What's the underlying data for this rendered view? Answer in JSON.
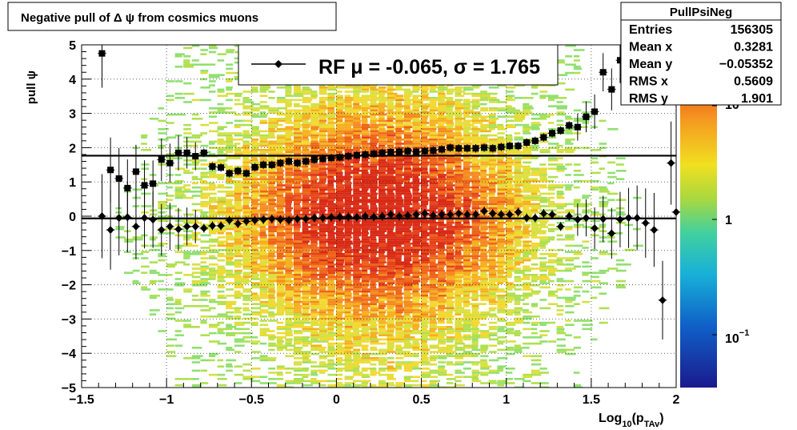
{
  "title": "Negative pull of Δ ψ from cosmics muons",
  "stats": {
    "name": "PullPsiNeg",
    "rows": [
      {
        "label": "Entries",
        "value": "156305"
      },
      {
        "label": "Mean x",
        "value": "0.3281"
      },
      {
        "label": "Mean y",
        "value": "−0.05352"
      },
      {
        "label": "RMS x",
        "value": "0.5609"
      },
      {
        "label": "RMS y",
        "value": "1.901"
      }
    ]
  },
  "legend": {
    "text": "RF μ = -0.065, σ =   1.765"
  },
  "chart_data": {
    "type": "heatmap",
    "title": "Negative pull of Δ ψ from cosmics muons",
    "xlabel_base": "Log",
    "xlabel_sub1": "10",
    "xlabel_mid": "(p",
    "xlabel_sub2": "TAv",
    "xlabel_end": ")",
    "ylabel": "pull ψ",
    "xlim": [
      -1.5,
      2
    ],
    "ylim": [
      -5,
      5
    ],
    "x_ticks": [
      "−1.5",
      "−1",
      "−0.5",
      "0",
      "0.5",
      "1",
      "1.5",
      "2"
    ],
    "y_ticks": [
      "5",
      "4",
      "3",
      "2",
      "1",
      "0",
      "−1",
      "−2",
      "−3",
      "−4",
      "−5"
    ],
    "colorbar": {
      "scale": "log",
      "labels": [
        {
          "base": "10",
          "exp": ""
        },
        {
          "base": "1",
          "exp": ""
        },
        {
          "base": "10",
          "exp": "−1"
        }
      ]
    },
    "fit_lines": [
      {
        "name": "sigma",
        "y": 1.765
      },
      {
        "name": "mu",
        "y": -0.065
      }
    ],
    "series": [
      {
        "name": "sigma",
        "marker": "square",
        "points": [
          [
            -1.38,
            4.75
          ],
          [
            -1.33,
            1.35
          ],
          [
            -1.28,
            1.1
          ],
          [
            -1.23,
            0.82
          ],
          [
            -1.18,
            1.3
          ],
          [
            -1.13,
            0.9
          ],
          [
            -1.08,
            0.95
          ],
          [
            -1.03,
            1.65
          ],
          [
            -0.98,
            1.55
          ],
          [
            -0.93,
            1.85
          ],
          [
            -0.88,
            1.85
          ],
          [
            -0.83,
            1.75
          ],
          [
            -0.78,
            1.85
          ],
          [
            -0.73,
            1.45
          ],
          [
            -0.68,
            1.42
          ],
          [
            -0.63,
            1.25
          ],
          [
            -0.58,
            1.32
          ],
          [
            -0.53,
            1.25
          ],
          [
            -0.48,
            1.43
          ],
          [
            -0.43,
            1.5
          ],
          [
            -0.38,
            1.5
          ],
          [
            -0.33,
            1.55
          ],
          [
            -0.28,
            1.6
          ],
          [
            -0.23,
            1.55
          ],
          [
            -0.18,
            1.6
          ],
          [
            -0.13,
            1.65
          ],
          [
            -0.08,
            1.68
          ],
          [
            -0.03,
            1.7
          ],
          [
            0.02,
            1.72
          ],
          [
            0.07,
            1.75
          ],
          [
            0.12,
            1.78
          ],
          [
            0.17,
            1.8
          ],
          [
            0.22,
            1.82
          ],
          [
            0.27,
            1.85
          ],
          [
            0.32,
            1.87
          ],
          [
            0.37,
            1.88
          ],
          [
            0.42,
            1.9
          ],
          [
            0.47,
            1.88
          ],
          [
            0.52,
            1.9
          ],
          [
            0.57,
            1.92
          ],
          [
            0.62,
            1.95
          ],
          [
            0.67,
            2.0
          ],
          [
            0.72,
            1.98
          ],
          [
            0.77,
            1.98
          ],
          [
            0.82,
            1.98
          ],
          [
            0.87,
            2.0
          ],
          [
            0.92,
            1.98
          ],
          [
            0.97,
            2.02
          ],
          [
            1.02,
            2.05
          ],
          [
            1.07,
            2.05
          ],
          [
            1.12,
            2.15
          ],
          [
            1.17,
            2.2
          ],
          [
            1.22,
            2.3
          ],
          [
            1.27,
            2.42
          ],
          [
            1.32,
            2.5
          ],
          [
            1.37,
            2.65
          ],
          [
            1.42,
            2.6
          ],
          [
            1.47,
            2.9
          ],
          [
            1.52,
            3.05
          ],
          [
            1.57,
            4.2
          ],
          [
            1.62,
            3.7
          ],
          [
            1.67,
            4.55
          ]
        ]
      },
      {
        "name": "mu",
        "marker": "diamond",
        "points": [
          [
            -1.38,
            0.0
          ],
          [
            -1.33,
            -0.4
          ],
          [
            -1.28,
            -0.05
          ],
          [
            -1.23,
            -0.03
          ],
          [
            -1.18,
            -0.3
          ],
          [
            -1.13,
            -0.05
          ],
          [
            -1.08,
            -0.1
          ],
          [
            -1.03,
            -0.4
          ],
          [
            -0.98,
            -0.3
          ],
          [
            -0.93,
            -0.38
          ],
          [
            -0.88,
            -0.3
          ],
          [
            -0.83,
            -0.3
          ],
          [
            -0.78,
            -0.35
          ],
          [
            -0.73,
            -0.28
          ],
          [
            -0.68,
            -0.28
          ],
          [
            -0.63,
            -0.12
          ],
          [
            -0.58,
            -0.22
          ],
          [
            -0.53,
            -0.15
          ],
          [
            -0.48,
            -0.12
          ],
          [
            -0.43,
            -0.1
          ],
          [
            -0.38,
            -0.08
          ],
          [
            -0.33,
            -0.1
          ],
          [
            -0.28,
            -0.12
          ],
          [
            -0.23,
            -0.08
          ],
          [
            -0.18,
            -0.08
          ],
          [
            -0.13,
            -0.05
          ],
          [
            -0.08,
            -0.05
          ],
          [
            -0.03,
            -0.03
          ],
          [
            0.02,
            -0.02
          ],
          [
            0.07,
            -0.02
          ],
          [
            0.12,
            -0.03
          ],
          [
            0.17,
            0.0
          ],
          [
            0.22,
            -0.02
          ],
          [
            0.27,
            0.0
          ],
          [
            0.32,
            0.05
          ],
          [
            0.37,
            0.0
          ],
          [
            0.42,
            0.02
          ],
          [
            0.47,
            0.05
          ],
          [
            0.52,
            0.08
          ],
          [
            0.57,
            0.02
          ],
          [
            0.62,
            0.05
          ],
          [
            0.67,
            0.05
          ],
          [
            0.72,
            0.08
          ],
          [
            0.77,
            0.05
          ],
          [
            0.82,
            0.05
          ],
          [
            0.87,
            0.15
          ],
          [
            0.92,
            0.08
          ],
          [
            0.97,
            0.05
          ],
          [
            1.02,
            0.05
          ],
          [
            1.07,
            0.12
          ],
          [
            1.12,
            -0.05
          ],
          [
            1.17,
            -0.05
          ],
          [
            1.22,
            0.08
          ],
          [
            1.27,
            0.05
          ],
          [
            1.32,
            -0.3
          ],
          [
            1.37,
            0.0
          ],
          [
            1.42,
            -0.1
          ],
          [
            1.47,
            -0.05
          ],
          [
            1.52,
            -0.35
          ],
          [
            1.57,
            -0.08
          ],
          [
            1.62,
            -0.5
          ],
          [
            1.67,
            -0.1
          ],
          [
            1.72,
            -0.05
          ],
          [
            1.77,
            -0.05
          ],
          [
            1.82,
            -0.2
          ],
          [
            1.87,
            -0.4
          ],
          [
            1.92,
            -2.45
          ],
          [
            1.97,
            1.55
          ],
          [
            2.0,
            0.12
          ]
        ]
      }
    ]
  }
}
